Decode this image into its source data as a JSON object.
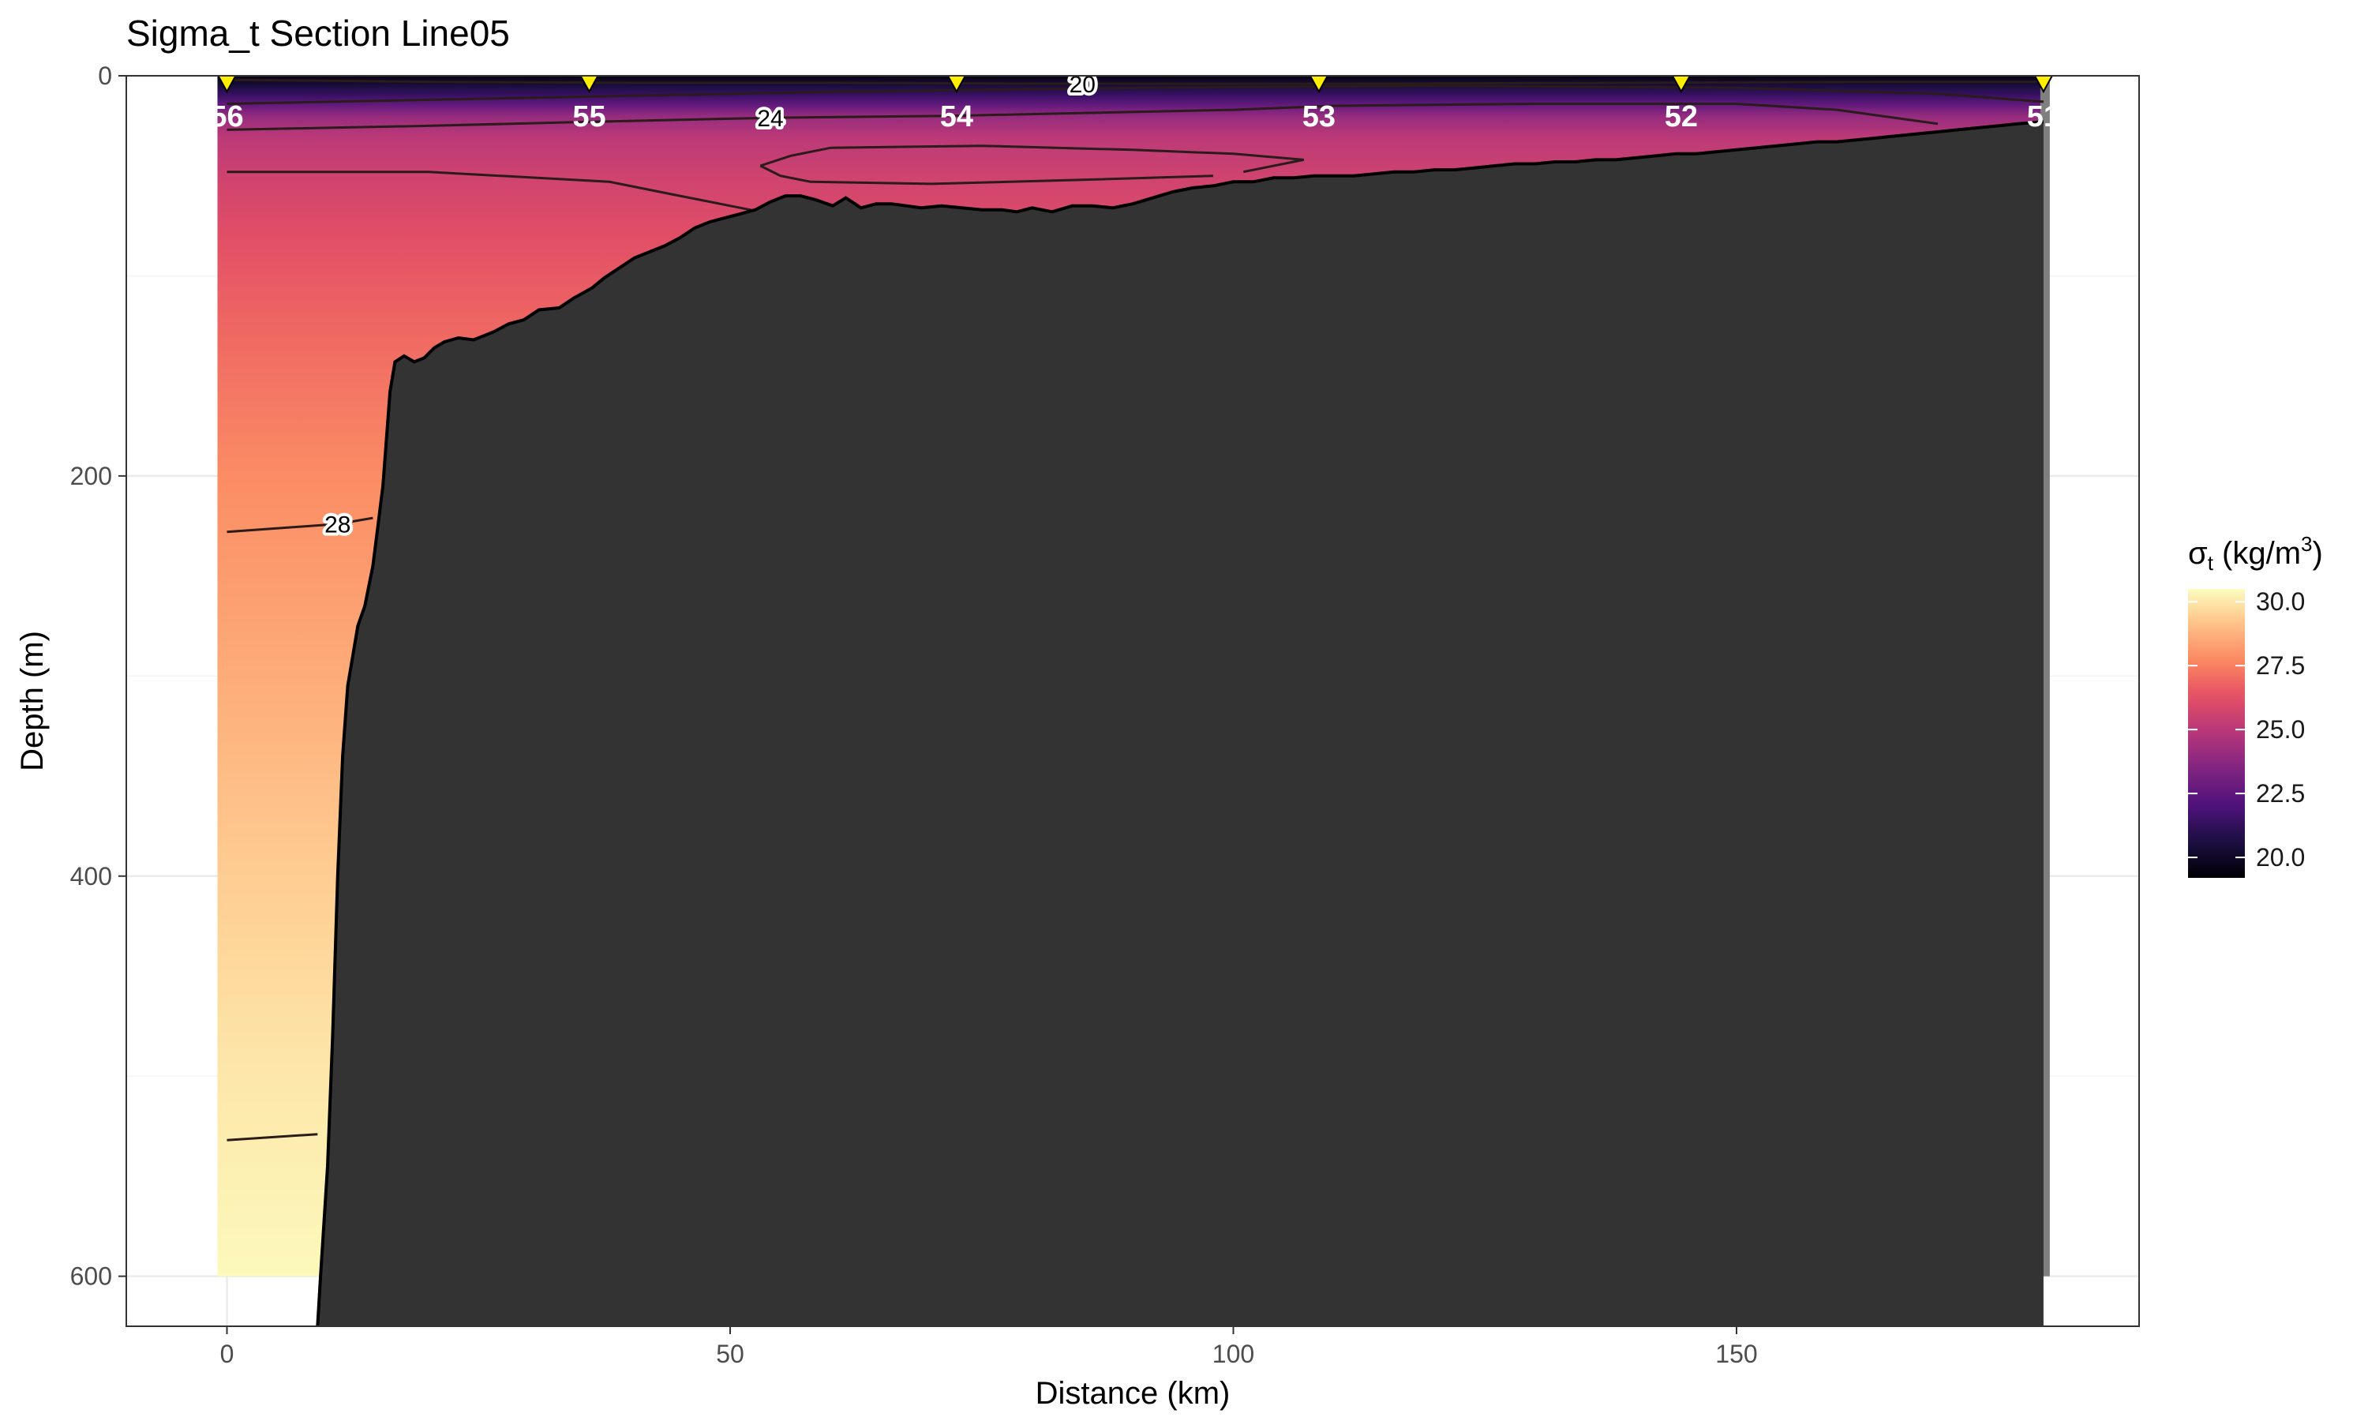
{
  "chart_data": {
    "type": "heatmap",
    "title": "Sigma_t Section Line05",
    "xlabel": "Distance (km)",
    "ylabel": "Depth (m)",
    "xlim": [
      -10,
      190
    ],
    "ylim": [
      625,
      0
    ],
    "x_ticks": [
      0,
      50,
      100,
      150
    ],
    "y_ticks": [
      0,
      200,
      400,
      600
    ],
    "grid": true,
    "legend": {
      "title_main": "σ",
      "title_sub": "t",
      "title_rest": " (kg/m",
      "title_sup": "3",
      "title_end": ")",
      "placement": "right",
      "range": [
        19.2,
        30.5
      ],
      "ticks": [
        20.0,
        22.5,
        25.0,
        27.5,
        30.0
      ],
      "tick_labels": [
        "20.0",
        "22.5",
        "25.0",
        "27.5",
        "30.0"
      ]
    },
    "stations": [
      {
        "label": "56",
        "x": 0
      },
      {
        "label": "55",
        "x": 36
      },
      {
        "label": "54",
        "x": 72.5
      },
      {
        "label": "53",
        "x": 108.5
      },
      {
        "label": "52",
        "x": 144.5
      },
      {
        "label": "51",
        "x": 180.5
      }
    ],
    "field_profile": {
      "depth": [
        0,
        5,
        10,
        15,
        20,
        30,
        50,
        80,
        120,
        200,
        300,
        400,
        500,
        600
      ],
      "sigma_t": [
        19.5,
        20.5,
        21.5,
        22.7,
        24.0,
        25.0,
        25.6,
        26.2,
        26.8,
        27.8,
        28.6,
        29.4,
        30.0,
        30.4
      ]
    },
    "bottom_profile": {
      "x": [
        9,
        9.3,
        10,
        10.5,
        11,
        11.5,
        12,
        13,
        13.7,
        14.5,
        15,
        15.5,
        16.2,
        16.7,
        17.6,
        18.6,
        19.6,
        20.6,
        21.6,
        23,
        24.5,
        25.5,
        26.5,
        28,
        29.5,
        31,
        33,
        34.5,
        36.3,
        37.5,
        39,
        40.5,
        42,
        43.5,
        45,
        46.5,
        48,
        49.5,
        51,
        52.5,
        54,
        55.5,
        57,
        58.5,
        60.2,
        61.5,
        63,
        64.5,
        66,
        67.5,
        69,
        71,
        73,
        75,
        77,
        78.5,
        80,
        82,
        84,
        86,
        88,
        90,
        92,
        94,
        96,
        98,
        100,
        102,
        104,
        106,
        108,
        110,
        112,
        114,
        116,
        118,
        120,
        122,
        124,
        126,
        128,
        130,
        132,
        134,
        136,
        138,
        140,
        142,
        144,
        146,
        148,
        150,
        152,
        154,
        156,
        158,
        160,
        162,
        164,
        166,
        168,
        170,
        172,
        174,
        176,
        178,
        180.5
      ],
      "depth": [
        625,
        600,
        545,
        480,
        400,
        340,
        305,
        275,
        265,
        245,
        225,
        205,
        158,
        143,
        140,
        143,
        141,
        136,
        133,
        131,
        132,
        130,
        128,
        124,
        122,
        117,
        116,
        111,
        106,
        101,
        96,
        91,
        88,
        85,
        81,
        76,
        73,
        71,
        69,
        67,
        63,
        60,
        60,
        62,
        65,
        61,
        66,
        64,
        64,
        65,
        66,
        65,
        66,
        67,
        67,
        68,
        66,
        68,
        65,
        65,
        66,
        64,
        61,
        58,
        56,
        55,
        53,
        53,
        51,
        51,
        50,
        50,
        50,
        49,
        48,
        48,
        47,
        47,
        46,
        45,
        44,
        44,
        43,
        43,
        42,
        42,
        41,
        40,
        39,
        39,
        38,
        37,
        36,
        35,
        34,
        33,
        33,
        32,
        31,
        30,
        29,
        28,
        27,
        26,
        25,
        24,
        23
      ]
    },
    "contours": [
      {
        "level": "20",
        "label": "20",
        "x": [
          0,
          20,
          40,
          60,
          85,
          110,
          140,
          165,
          180.5
        ],
        "depth": [
          2,
          3,
          3.5,
          3.5,
          4,
          4,
          3.5,
          3,
          3
        ],
        "label_x": 85,
        "label_depth": 4
      },
      {
        "level": "22",
        "label": "",
        "x": [
          0,
          20,
          40,
          60,
          90,
          120,
          150,
          170,
          180.5
        ],
        "depth": [
          14,
          12,
          10,
          8,
          6,
          5,
          6,
          9,
          13
        ],
        "label_x": null,
        "label_depth": null
      },
      {
        "level": "24",
        "label": "24",
        "x": [
          0,
          10,
          20,
          36,
          54,
          72,
          100,
          110,
          130,
          150,
          160,
          170
        ],
        "depth": [
          27,
          26,
          25,
          23,
          21,
          20,
          17,
          15,
          14,
          14,
          17,
          24
        ],
        "label_x": 54,
        "label_depth": 21
      },
      {
        "level": "25.5",
        "label": "",
        "x": [
          0,
          20,
          38,
          45,
          53
        ],
        "depth": [
          48,
          48,
          53,
          60,
          68
        ],
        "label_x": null,
        "label_depth": null
      },
      {
        "level": "25.5b",
        "label": "",
        "x": [
          53,
          56,
          60,
          75,
          90,
          100,
          107,
          101
        ],
        "depth": [
          45,
          40,
          36,
          35,
          37,
          39,
          42,
          48
        ],
        "label_x": null,
        "label_depth": null
      },
      {
        "level": "25.5c",
        "label": "",
        "x": [
          98,
          85,
          70,
          58,
          55,
          53
        ],
        "depth": [
          50,
          52,
          54,
          53,
          50,
          45
        ],
        "label_x": null,
        "label_depth": null
      },
      {
        "level": "28",
        "label": "28",
        "x": [
          0,
          11,
          14.5
        ],
        "depth": [
          228,
          224,
          221
        ],
        "label_x": 11,
        "label_depth": 224
      },
      {
        "level": "29.5",
        "label": "",
        "x": [
          0,
          9
        ],
        "depth": [
          532,
          529
        ],
        "label_x": null,
        "label_depth": null
      }
    ]
  }
}
